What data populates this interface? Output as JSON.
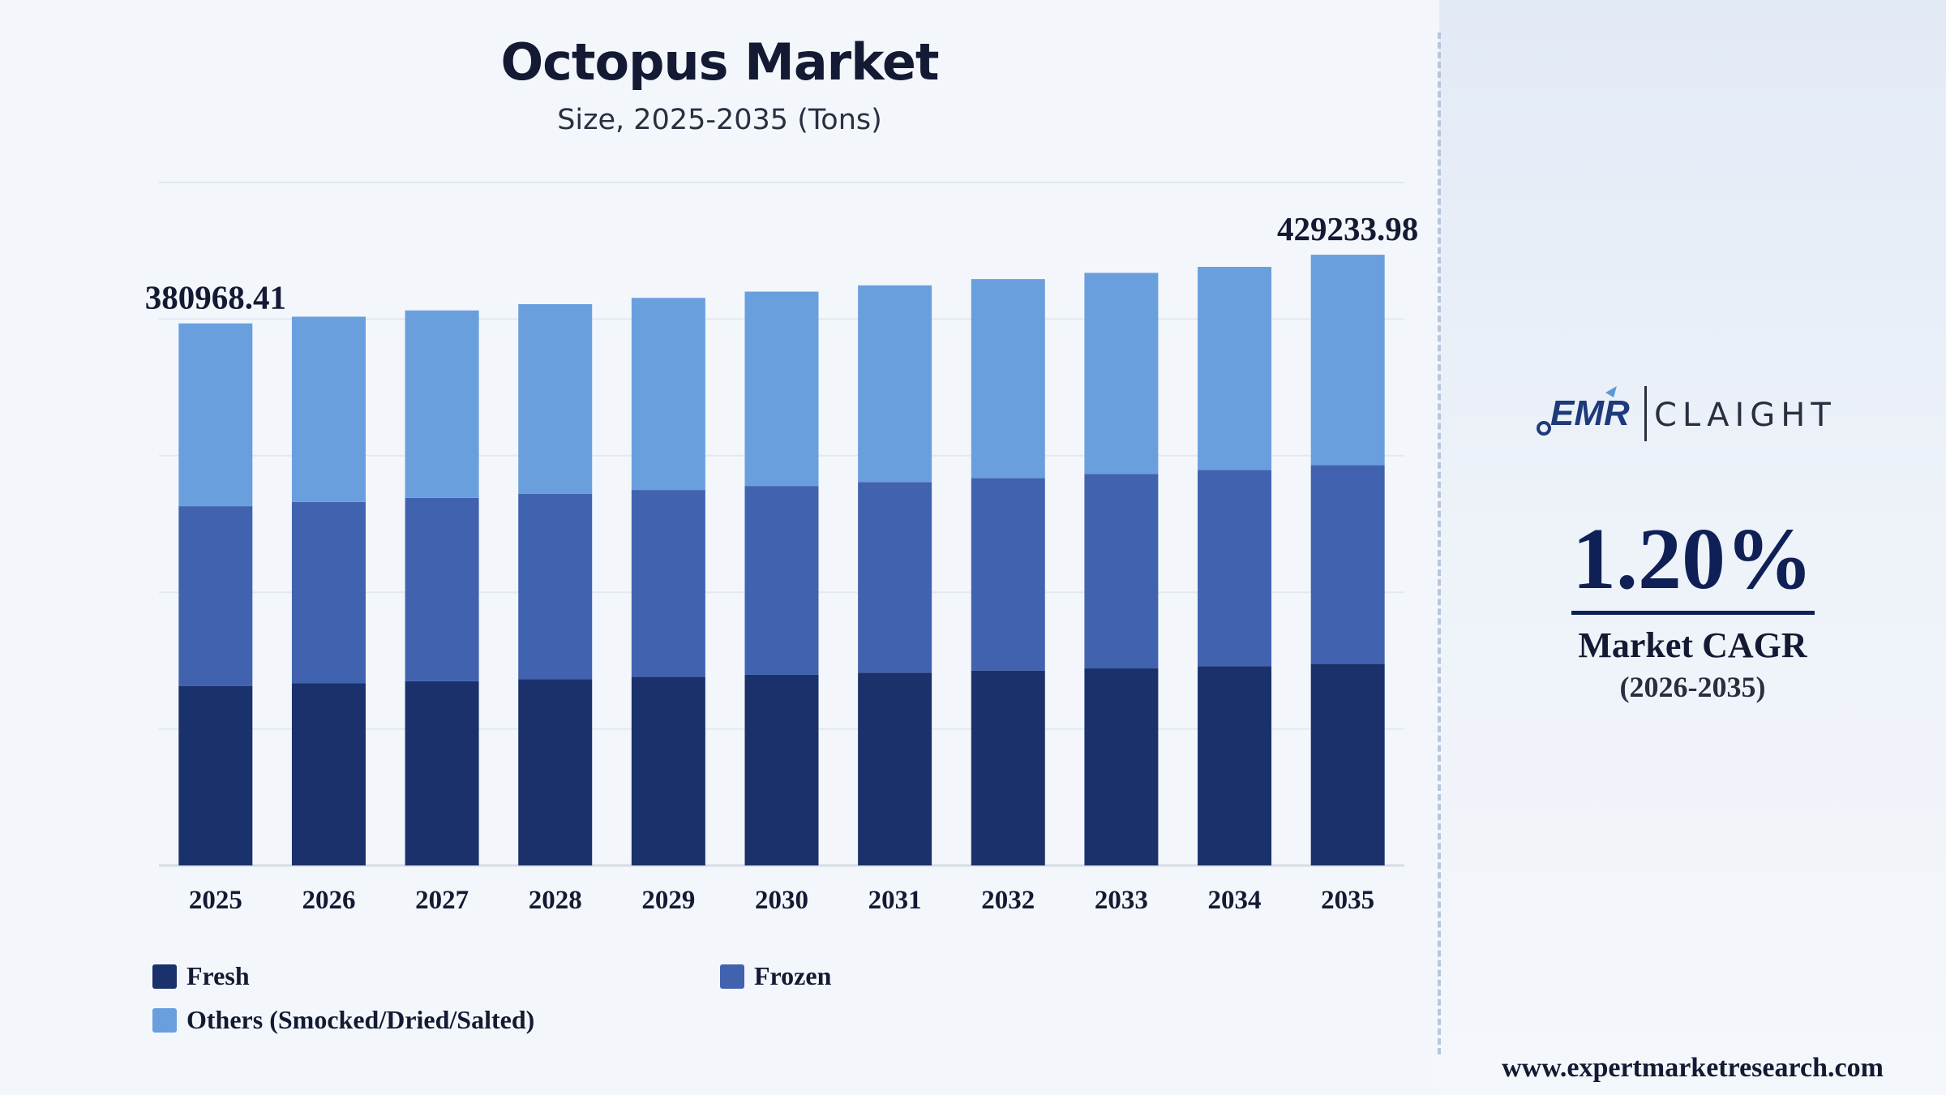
{
  "header": {
    "title": "Octopus Market",
    "subtitle": "Size, 2025-2035 (Tons)"
  },
  "chart_data": {
    "type": "bar",
    "stacked": true,
    "title": "Octopus Market",
    "subtitle": "Size, 2025-2035 (Tons)",
    "xlabel": "",
    "ylabel": "",
    "categories": [
      "2025",
      "2026",
      "2027",
      "2028",
      "2029",
      "2030",
      "2031",
      "2032",
      "2033",
      "2034",
      "2035"
    ],
    "series": [
      {
        "name": "Fresh",
        "color": "#1b316b",
        "values": [
          126200,
          128000,
          129500,
          131000,
          132500,
          134000,
          135500,
          137000,
          138500,
          140000,
          141800
        ]
      },
      {
        "name": "Frozen",
        "color": "#4163af",
        "values": [
          126300,
          127500,
          128800,
          130100,
          131400,
          132700,
          134000,
          135300,
          136600,
          138000,
          139500
        ]
      },
      {
        "name": "Others (Smocked/Dried/Salted)",
        "color": "#6a9fde",
        "values": [
          128468.41,
          130200,
          131800,
          133400,
          135000,
          136600,
          138200,
          139800,
          141400,
          142700,
          147933.98
        ]
      }
    ],
    "totals": [
      380968.41,
      385700,
      390100,
      394500,
      398900,
      403300,
      407700,
      412100,
      416500,
      420700,
      429233.98
    ],
    "data_labels": [
      {
        "category": "2025",
        "text": "380968.41"
      },
      {
        "category": "2035",
        "text": "429233.98"
      }
    ],
    "ylim": [
      0,
      480000
    ],
    "grid": true,
    "legend_position": "bottom"
  },
  "legend": {
    "items": [
      {
        "label": "Fresh",
        "color": "#1b316b"
      },
      {
        "label": "Frozen",
        "color": "#4163af"
      },
      {
        "label": "Others (Smocked/Dried/Salted)",
        "color": "#6a9fde"
      }
    ]
  },
  "brand": {
    "logo_left": "EMR",
    "logo_right": "CLAIGHT",
    "cagr_value": "1.20%",
    "cagr_label": "Market CAGR",
    "cagr_period": "(2026-2035)",
    "website": "www.expertmarketresearch.com"
  }
}
